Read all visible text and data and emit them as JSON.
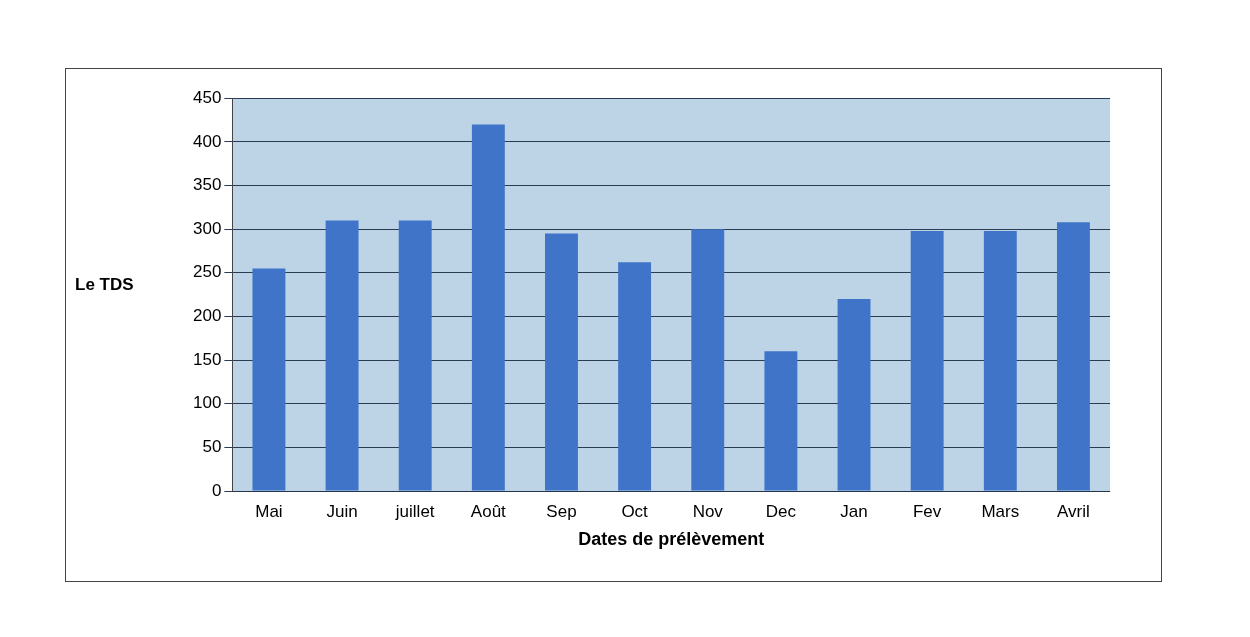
{
  "chart_data": {
    "type": "bar",
    "xlabel": "Dates de prélèvement",
    "ylabel": "Le TDS",
    "categories": [
      "Mai",
      "Juin",
      "juillet",
      "Août",
      "Sep",
      "Oct",
      "Nov",
      "Dec",
      "Jan",
      "Fev",
      "Mars",
      "Avril"
    ],
    "values": [
      255,
      310,
      310,
      420,
      295,
      262,
      300,
      160,
      220,
      298,
      298,
      308
    ],
    "color": "#3f74c9",
    "ylim": [
      0,
      450
    ],
    "yticks": [
      0,
      50,
      100,
      150,
      200,
      250,
      300,
      350,
      400,
      450
    ],
    "grid": "y",
    "legend": false
  }
}
